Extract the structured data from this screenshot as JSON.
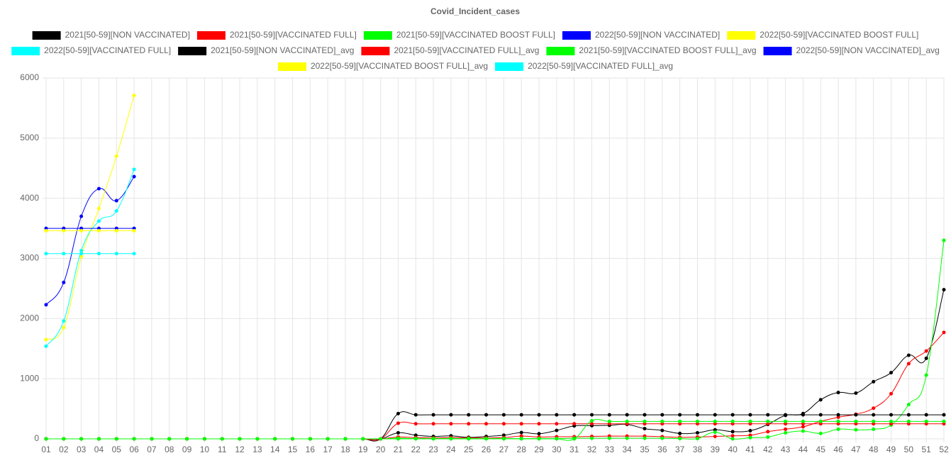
{
  "chart_data": {
    "type": "line",
    "title": "Covid_Incident_cases",
    "categories": [
      "01",
      "02",
      "03",
      "04",
      "05",
      "06",
      "07",
      "08",
      "09",
      "10",
      "11",
      "12",
      "13",
      "14",
      "15",
      "16",
      "17",
      "18",
      "19",
      "20",
      "21",
      "22",
      "23",
      "24",
      "25",
      "26",
      "27",
      "28",
      "29",
      "30",
      "31",
      "32",
      "33",
      "34",
      "35",
      "36",
      "37",
      "38",
      "39",
      "40",
      "41",
      "42",
      "43",
      "44",
      "45",
      "46",
      "47",
      "48",
      "49",
      "50",
      "51",
      "52"
    ],
    "ylim": [
      0,
      6000
    ],
    "yticks": [
      0,
      1000,
      2000,
      3000,
      4000,
      5000,
      6000
    ],
    "grid": true,
    "legend": "top",
    "series": [
      {
        "name": "2021[50-59][NON VACCINATED]",
        "color": "#000000",
        "values": [
          0,
          0,
          0,
          0,
          0,
          0,
          0,
          0,
          0,
          0,
          0,
          0,
          0,
          0,
          0,
          0,
          0,
          0,
          0,
          0,
          100,
          60,
          40,
          50,
          25,
          40,
          60,
          105,
          85,
          140,
          215,
          220,
          225,
          240,
          170,
          140,
          90,
          100,
          150,
          120,
          135,
          240,
          390,
          420,
          650,
          770,
          760,
          950,
          1100,
          1390,
          1340,
          2480
        ]
      },
      {
        "name": "2021[50-59][VACCINATED FULL]",
        "color": "#ff0000",
        "values": [
          0,
          0,
          0,
          0,
          0,
          0,
          0,
          0,
          0,
          0,
          0,
          0,
          0,
          0,
          0,
          0,
          0,
          0,
          0,
          0,
          30,
          20,
          15,
          20,
          15,
          15,
          20,
          45,
          30,
          35,
          35,
          40,
          45,
          45,
          45,
          35,
          25,
          30,
          40,
          50,
          60,
          120,
          160,
          200,
          290,
          360,
          410,
          510,
          750,
          1250,
          1460,
          1770
        ]
      },
      {
        "name": "2021[50-59][VACCINATED BOOST FULL]",
        "color": "#00ff00",
        "values": [
          0,
          0,
          0,
          0,
          0,
          0,
          0,
          0,
          0,
          0,
          0,
          0,
          0,
          0,
          0,
          0,
          0,
          0,
          0,
          0,
          10,
          5,
          5,
          5,
          5,
          5,
          5,
          5,
          5,
          5,
          10,
          10,
          10,
          10,
          10,
          10,
          5,
          5,
          110,
          0,
          20,
          30,
          100,
          130,
          90,
          160,
          150,
          160,
          230,
          570,
          1060,
          3300
        ]
      },
      {
        "name": "2022[50-59][NON VACCINATED]",
        "color": "#0000ff",
        "values": [
          2230,
          2600,
          3700,
          4160,
          3960,
          4360,
          null,
          null,
          null,
          null,
          null,
          null,
          null,
          null,
          null,
          null,
          null,
          null,
          null,
          null,
          null,
          null,
          null,
          null,
          null,
          null,
          null,
          null,
          null,
          null,
          null,
          null,
          null,
          null,
          null,
          null,
          null,
          null,
          null,
          null,
          null,
          null,
          null,
          null,
          null,
          null,
          null,
          null,
          null,
          null,
          null,
          null
        ]
      },
      {
        "name": "2022[50-59][VACCINATED BOOST FULL]",
        "color": "#ffff00",
        "values": [
          1650,
          1850,
          3030,
          3830,
          4700,
          5710,
          null,
          null,
          null,
          null,
          null,
          null,
          null,
          null,
          null,
          null,
          null,
          null,
          null,
          null,
          null,
          null,
          null,
          null,
          null,
          null,
          null,
          null,
          null,
          null,
          null,
          null,
          null,
          null,
          null,
          null,
          null,
          null,
          null,
          null,
          null,
          null,
          null,
          null,
          null,
          null,
          null,
          null,
          null,
          null,
          null,
          null
        ]
      },
      {
        "name": "2022[50-59][VACCINATED FULL]",
        "color": "#00ffff",
        "values": [
          1540,
          1960,
          3130,
          3620,
          3790,
          4480,
          null,
          null,
          null,
          null,
          null,
          null,
          null,
          null,
          null,
          null,
          null,
          null,
          null,
          null,
          null,
          null,
          null,
          null,
          null,
          null,
          null,
          null,
          null,
          null,
          null,
          null,
          null,
          null,
          null,
          null,
          null,
          null,
          null,
          null,
          null,
          null,
          null,
          null,
          null,
          null,
          null,
          null,
          null,
          null,
          null,
          null
        ]
      },
      {
        "name": "2021[50-59][NON VACCINATED]_avg",
        "color": "#000000",
        "values": [
          0,
          0,
          0,
          0,
          0,
          0,
          0,
          0,
          0,
          0,
          0,
          0,
          0,
          0,
          0,
          0,
          0,
          0,
          0,
          0,
          420,
          400,
          400,
          400,
          400,
          400,
          400,
          400,
          400,
          400,
          400,
          400,
          400,
          400,
          400,
          400,
          400,
          400,
          400,
          400,
          400,
          400,
          400,
          400,
          400,
          400,
          400,
          400,
          400,
          400,
          400,
          400
        ]
      },
      {
        "name": "2021[50-59][VACCINATED FULL]_avg",
        "color": "#ff0000",
        "values": [
          0,
          0,
          0,
          0,
          0,
          0,
          0,
          0,
          0,
          0,
          0,
          0,
          0,
          0,
          0,
          0,
          0,
          0,
          0,
          0,
          260,
          250,
          250,
          250,
          250,
          250,
          250,
          250,
          250,
          250,
          250,
          250,
          250,
          250,
          250,
          250,
          250,
          250,
          250,
          250,
          250,
          250,
          250,
          250,
          250,
          250,
          250,
          250,
          250,
          250,
          250,
          250
        ]
      },
      {
        "name": "2021[50-59][VACCINATED BOOST FULL]_avg",
        "color": "#00ff00",
        "values": [
          0,
          0,
          0,
          0,
          0,
          0,
          0,
          0,
          0,
          0,
          0,
          0,
          0,
          0,
          0,
          0,
          0,
          0,
          0,
          0,
          0,
          0,
          0,
          0,
          0,
          0,
          0,
          0,
          0,
          0,
          0,
          300,
          290,
          290,
          290,
          290,
          290,
          290,
          290,
          290,
          290,
          290,
          290,
          290,
          290,
          290,
          290,
          290,
          290,
          290,
          290,
          290
        ]
      },
      {
        "name": "2022[50-59][NON VACCINATED]_avg",
        "color": "#0000ff",
        "values": [
          3500,
          3500,
          3500,
          3500,
          3500,
          3500,
          null,
          null,
          null,
          null,
          null,
          null,
          null,
          null,
          null,
          null,
          null,
          null,
          null,
          null,
          null,
          null,
          null,
          null,
          null,
          null,
          null,
          null,
          null,
          null,
          null,
          null,
          null,
          null,
          null,
          null,
          null,
          null,
          null,
          null,
          null,
          null,
          null,
          null,
          null,
          null,
          null,
          null,
          null,
          null,
          null,
          null
        ]
      },
      {
        "name": "2022[50-59][VACCINATED BOOST FULL]_avg",
        "color": "#ffff00",
        "values": [
          3460,
          3460,
          3460,
          3460,
          3460,
          3460,
          null,
          null,
          null,
          null,
          null,
          null,
          null,
          null,
          null,
          null,
          null,
          null,
          null,
          null,
          null,
          null,
          null,
          null,
          null,
          null,
          null,
          null,
          null,
          null,
          null,
          null,
          null,
          null,
          null,
          null,
          null,
          null,
          null,
          null,
          null,
          null,
          null,
          null,
          null,
          null,
          null,
          null,
          null,
          null,
          null,
          null
        ]
      },
      {
        "name": "2022[50-59][VACCINATED FULL]_avg",
        "color": "#00ffff",
        "values": [
          3080,
          3080,
          3080,
          3080,
          3080,
          3080,
          null,
          null,
          null,
          null,
          null,
          null,
          null,
          null,
          null,
          null,
          null,
          null,
          null,
          null,
          null,
          null,
          null,
          null,
          null,
          null,
          null,
          null,
          null,
          null,
          null,
          null,
          null,
          null,
          null,
          null,
          null,
          null,
          null,
          null,
          null,
          null,
          null,
          null,
          null,
          null,
          null,
          null,
          null,
          null,
          null,
          null
        ]
      }
    ]
  }
}
